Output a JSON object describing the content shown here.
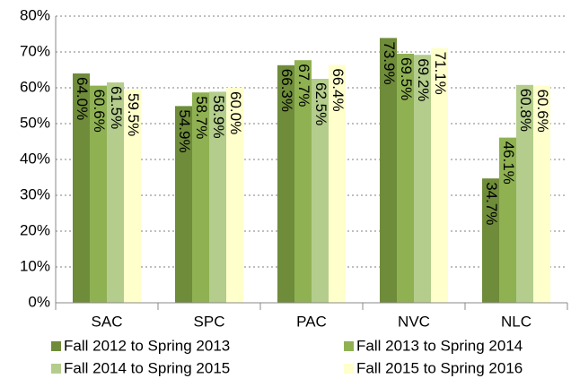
{
  "chart_data": {
    "type": "bar",
    "categories": [
      "SAC",
      "SPC",
      "PAC",
      "NVC",
      "NLC"
    ],
    "series": [
      {
        "name": "Fall 2012 to Spring 2013",
        "color": "#6f8c3a",
        "values": [
          64.0,
          54.9,
          66.3,
          73.9,
          34.7
        ],
        "value_labels": [
          "64.0%",
          "54.9%",
          "66.3%",
          "73.9%",
          "34.7%"
        ]
      },
      {
        "name": "Fall 2013 to Spring 2014",
        "color": "#8fb152",
        "values": [
          60.6,
          58.7,
          67.7,
          69.5,
          46.1
        ],
        "value_labels": [
          "60.6%",
          "58.7%",
          "67.7%",
          "69.5%",
          "46.1%"
        ]
      },
      {
        "name": "Fall 2014 to Spring 2015",
        "color": "#b4cd8c",
        "values": [
          61.5,
          58.9,
          62.5,
          69.2,
          60.8
        ],
        "value_labels": [
          "61.5%",
          "58.9%",
          "62.5%",
          "69.2%",
          "60.8%"
        ]
      },
      {
        "name": "Fall 2015 to Spring 2016",
        "color": "#ffffcc",
        "values": [
          59.5,
          60.0,
          66.4,
          71.1,
          60.6
        ],
        "value_labels": [
          "59.5%",
          "60.0%",
          "66.4%",
          "71.1%",
          "60.6%"
        ]
      }
    ],
    "ylim": [
      0,
      80
    ],
    "yticks": [
      {
        "value": 0,
        "label": "0%"
      },
      {
        "value": 10,
        "label": "10%"
      },
      {
        "value": 20,
        "label": "20%"
      },
      {
        "value": 30,
        "label": "30%"
      },
      {
        "value": 40,
        "label": "40%"
      },
      {
        "value": 50,
        "label": "50%"
      },
      {
        "value": 60,
        "label": "60%"
      },
      {
        "value": 70,
        "label": "70%"
      },
      {
        "value": 80,
        "label": "80%"
      }
    ],
    "grid": true,
    "legend": "bottom"
  }
}
